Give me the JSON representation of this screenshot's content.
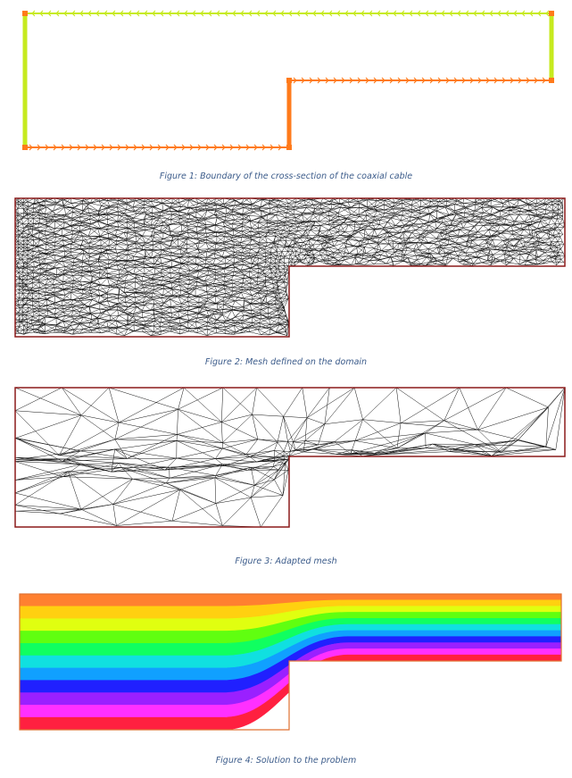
{
  "figures": [
    {
      "caption": "Figure 1: Boundary of the cross-section of the coaxial cable"
    },
    {
      "caption": "Figure 2: Mesh defined on the domain"
    },
    {
      "caption": "Figure 3: Adapted mesh"
    },
    {
      "caption": "Figure 4: Solution to the problem"
    }
  ],
  "colors": {
    "outer_boundary": "#c6ea1e",
    "inner_boundary": "#ff7a1a",
    "mesh_line": "#111111",
    "domain_border": "#8b1a1a",
    "solution_scale": [
      "#ff2040",
      "#ff30ff",
      "#9a20ff",
      "#2020ff",
      "#10a0ff",
      "#10e0e0",
      "#10ff60",
      "#60ff10",
      "#e0ff10",
      "#ffd010",
      "#ff8030"
    ]
  }
}
